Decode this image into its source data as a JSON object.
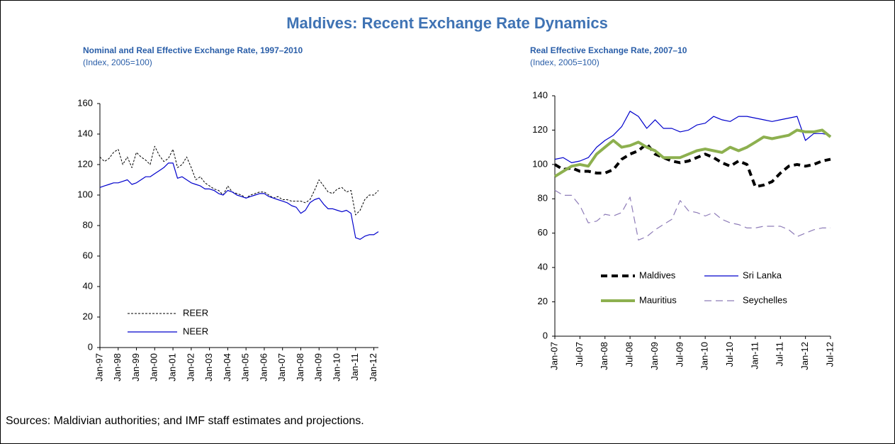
{
  "title": "Maldives: Recent Exchange Rate Dynamics",
  "source": "Sources: Maldivian authorities; and IMF staff estimates and projections.",
  "chart_data": [
    {
      "type": "line",
      "title": "Nominal and Real Effective Exchange Rate, 1997–2010",
      "subtitle": "(Index, 2005=100)",
      "categories": [
        "Jan-97",
        null,
        null,
        null,
        "Jan-98",
        null,
        null,
        null,
        "Jan-99",
        null,
        null,
        null,
        "Jan-00",
        null,
        null,
        null,
        "Jan-01",
        null,
        null,
        null,
        "Jan-02",
        null,
        null,
        null,
        "Jan-03",
        null,
        null,
        null,
        "Jan-04",
        null,
        null,
        null,
        "Jan-05",
        null,
        null,
        null,
        "Jan-06",
        null,
        null,
        null,
        "Jan-07",
        null,
        null,
        null,
        "Jan-08",
        null,
        null,
        null,
        "Jan-09",
        null,
        null,
        null,
        "Jan-10",
        null,
        null,
        null,
        "Jan-11",
        null,
        null,
        null,
        "Jan-12",
        null
      ],
      "series": [
        {
          "name": "REER",
          "color": "#000000",
          "style": "dashed",
          "width": 1,
          "values": [
            125,
            122,
            124,
            128,
            130,
            120,
            125,
            118,
            128,
            125,
            123,
            120,
            132,
            126,
            122,
            124,
            130,
            118,
            120,
            125,
            118,
            110,
            112,
            108,
            106,
            104,
            103,
            100,
            106,
            102,
            101,
            100,
            98,
            100,
            101,
            102,
            102,
            100,
            98,
            99,
            97,
            97,
            96,
            96,
            96,
            95,
            97,
            103,
            110,
            106,
            102,
            101,
            104,
            105,
            102,
            103,
            87,
            90,
            97,
            100,
            100,
            103
          ]
        },
        {
          "name": "NEER",
          "color": "#0000cc",
          "style": "solid",
          "width": 1.2,
          "values": [
            105,
            106,
            107,
            108,
            108,
            109,
            110,
            107,
            108,
            110,
            112,
            112,
            114,
            116,
            118,
            121,
            121,
            111,
            112,
            110,
            108,
            107,
            106,
            104,
            104,
            103,
            101,
            100,
            103,
            102,
            100,
            99,
            98,
            99,
            100,
            101,
            101,
            99,
            98,
            97,
            96,
            95,
            93,
            92,
            88,
            90,
            95,
            97,
            98,
            94,
            91,
            91,
            90,
            89,
            90,
            88,
            72,
            71,
            73,
            74,
            74,
            76
          ]
        }
      ],
      "ylim": [
        0,
        160
      ],
      "yticks": [
        0,
        20,
        40,
        60,
        80,
        100,
        120,
        140,
        160
      ],
      "legend": "lower left",
      "legend_columns": 1
    },
    {
      "type": "line",
      "title": "Real Effective Exchange Rate, 2007–10",
      "subtitle": "(Index, 2005=100)",
      "categories": [
        "Jan-07",
        null,
        null,
        "Jul-07",
        null,
        null,
        "Jan-08",
        null,
        null,
        "Jul-08",
        null,
        null,
        "Jan-09",
        null,
        null,
        "Jul-09",
        null,
        null,
        "Jan-10",
        null,
        null,
        "Jul-10",
        null,
        null,
        "Jan-11",
        null,
        null,
        "Jul-11",
        null,
        null,
        "Jan-12",
        null,
        null,
        "Jul-12"
      ],
      "series": [
        {
          "name": "Maldives",
          "color": "#000000",
          "style": "dashed",
          "width": 4,
          "values": [
            100,
            97,
            98,
            96,
            96,
            95,
            95,
            97,
            103,
            106,
            108,
            112,
            106,
            104,
            102,
            101,
            102,
            104,
            106,
            104,
            101,
            99,
            102,
            100,
            87,
            88,
            90,
            95,
            99,
            100,
            99,
            100,
            102,
            103
          ]
        },
        {
          "name": "Sri Lanka",
          "color": "#0000cc",
          "style": "solid",
          "width": 1.2,
          "values": [
            103,
            104,
            101,
            102,
            104,
            110,
            114,
            117,
            122,
            131,
            128,
            121,
            126,
            121,
            121,
            119,
            120,
            123,
            124,
            128,
            126,
            125,
            128,
            128,
            127,
            126,
            125,
            126,
            127,
            128,
            114,
            118,
            118,
            117
          ]
        },
        {
          "name": "Mauritius",
          "color": "#8db04f",
          "style": "solid",
          "width": 4,
          "values": [
            93,
            96,
            99,
            100,
            99,
            106,
            110,
            114,
            110,
            111,
            113,
            110,
            108,
            104,
            104,
            104,
            106,
            108,
            109,
            108,
            107,
            110,
            108,
            110,
            113,
            116,
            115,
            116,
            117,
            120,
            119,
            119,
            120,
            116
          ]
        },
        {
          "name": "Seychelles",
          "color": "#8e7cb8",
          "style": "dashed",
          "width": 1.2,
          "values": [
            85,
            82,
            82,
            76,
            66,
            67,
            71,
            70,
            72,
            81,
            56,
            58,
            62,
            65,
            68,
            79,
            73,
            72,
            70,
            72,
            68,
            66,
            65,
            63,
            63,
            64,
            64,
            64,
            62,
            58,
            60,
            62,
            63,
            63
          ]
        }
      ],
      "ylim": [
        0,
        140
      ],
      "yticks": [
        0,
        20,
        40,
        60,
        80,
        100,
        120,
        140
      ],
      "legend": "lower center",
      "legend_columns": 2
    }
  ]
}
